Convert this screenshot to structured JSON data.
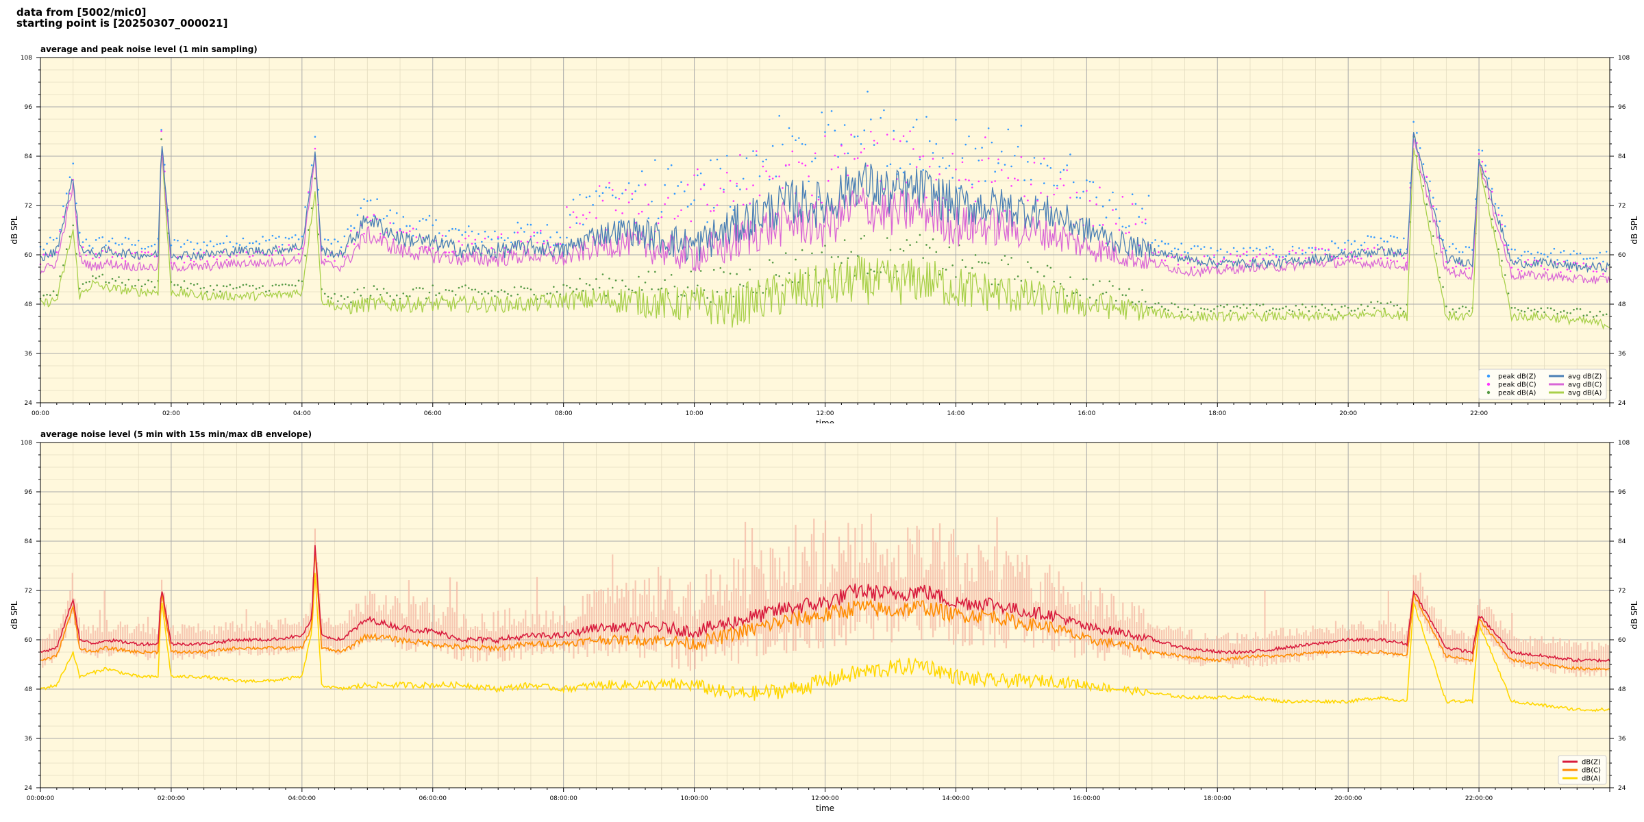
{
  "header": {
    "line1": "data from [5002/mic0]",
    "line2": "starting point is [20250307_000021]"
  },
  "colors": {
    "background": "#fff8dc",
    "grid_major": "#aaaaaa",
    "grid_minor": "#e4dcc0",
    "avg_z": "#4a7fb5",
    "avg_c": "#d966d6",
    "avg_a": "#a8d04a",
    "peak_z": "#3399ff",
    "peak_c": "#ff33ff",
    "peak_a": "#559944",
    "z5": "#d81a3c",
    "c5": "#ff8c00",
    "a5": "#ffd700",
    "envelope": "#f4b8a4"
  },
  "chart_data": [
    {
      "type": "line",
      "title": "average and peak noise level (1 min sampling)",
      "xlabel": "time",
      "ylabel": "dB SPL",
      "xlim": [
        0,
        24
      ],
      "ylim": [
        24,
        108
      ],
      "yticks": [
        "24",
        "36",
        "48",
        "60",
        "72",
        "84",
        "96",
        "108"
      ],
      "xticks": [
        "00:00",
        "02:00",
        "04:00",
        "06:00",
        "08:00",
        "10:00",
        "12:00",
        "14:00",
        "16:00",
        "18:00",
        "20:00",
        "22:00"
      ],
      "grid": true,
      "legend_position": "bottom-right",
      "legend": [
        "peak dB(Z)",
        "peak dB(C)",
        "peak dB(A)",
        "avg dB(Z)",
        "avg dB(C)",
        "avg dB(A)"
      ],
      "series": [
        {
          "name": "avg dB(Z)",
          "x": [
            0,
            0.25,
            0.5,
            0.6,
            0.8,
            1.0,
            1.5,
            1.8,
            1.85,
            2.0,
            2.5,
            3.0,
            3.5,
            4.0,
            4.2,
            4.3,
            4.6,
            5.0,
            5.5,
            6.0,
            6.5,
            7.0,
            7.5,
            8.0,
            8.5,
            9.0,
            9.5,
            10.0,
            10.5,
            11.0,
            11.5,
            12.0,
            12.5,
            13.0,
            13.5,
            14.0,
            14.5,
            15.0,
            15.5,
            16.0,
            16.5,
            17.0,
            17.5,
            18.0,
            18.5,
            19.0,
            19.5,
            20.0,
            20.5,
            20.9,
            21.0,
            21.5,
            21.9,
            22.0,
            22.5,
            23.0,
            23.5,
            24.0
          ],
          "values": [
            59,
            61,
            79,
            62,
            60,
            61,
            60,
            60,
            88,
            60,
            60,
            61,
            61,
            62,
            85,
            61,
            60,
            69,
            64,
            63,
            61,
            61,
            62,
            61,
            65,
            66,
            64,
            62,
            66,
            70,
            73,
            72,
            78,
            75,
            76,
            72,
            72,
            71,
            70,
            66,
            63,
            61,
            59,
            58,
            58,
            58,
            59,
            60,
            61,
            60,
            89,
            59,
            58,
            84,
            58,
            58,
            57,
            57
          ]
        },
        {
          "name": "avg dB(C)",
          "x": [
            0,
            0.25,
            0.5,
            0.6,
            0.8,
            1.0,
            1.5,
            1.8,
            1.85,
            2.0,
            2.5,
            3.0,
            3.5,
            4.0,
            4.2,
            4.3,
            4.6,
            5.0,
            5.5,
            6.0,
            6.5,
            7.0,
            7.5,
            8.0,
            8.5,
            9.0,
            9.5,
            10.0,
            10.5,
            11.0,
            11.5,
            12.0,
            12.5,
            13.0,
            13.5,
            14.0,
            14.5,
            15.0,
            15.5,
            16.0,
            16.5,
            17.0,
            17.5,
            18.0,
            18.5,
            19.0,
            19.5,
            20.0,
            20.5,
            20.9,
            21.0,
            21.5,
            21.9,
            22.0,
            22.5,
            23.0,
            23.5,
            24.0
          ],
          "values": [
            56,
            58,
            77,
            59,
            57,
            58,
            57,
            57,
            87,
            57,
            57,
            58,
            58,
            59,
            84,
            58,
            57,
            65,
            61,
            60,
            59,
            59,
            60,
            59,
            62,
            63,
            61,
            60,
            62,
            66,
            68,
            67,
            72,
            70,
            71,
            67,
            67,
            66,
            65,
            62,
            60,
            58,
            56,
            56,
            57,
            57,
            58,
            58,
            58,
            57,
            88,
            56,
            55,
            83,
            55,
            55,
            54,
            54
          ]
        },
        {
          "name": "avg dB(A)",
          "x": [
            0,
            0.25,
            0.5,
            0.6,
            0.8,
            1.0,
            1.5,
            1.8,
            1.85,
            2.0,
            2.5,
            3.0,
            3.5,
            4.0,
            4.2,
            4.3,
            4.6,
            5.0,
            5.5,
            6.0,
            6.5,
            7.0,
            7.5,
            8.0,
            8.5,
            9.0,
            9.5,
            10.0,
            10.5,
            11.0,
            11.5,
            12.0,
            12.5,
            13.0,
            13.5,
            14.0,
            14.5,
            15.0,
            15.5,
            16.0,
            16.5,
            17.0,
            17.5,
            18.0,
            18.5,
            19.0,
            19.5,
            20.0,
            20.5,
            20.9,
            21.0,
            21.5,
            21.9,
            22.0,
            22.5,
            23.0,
            23.5,
            24.0
          ],
          "values": [
            48,
            49,
            66,
            50,
            53,
            52,
            51,
            51,
            87,
            51,
            50,
            50,
            50,
            51,
            76,
            49,
            47,
            48,
            48,
            48,
            48,
            48,
            48,
            49,
            49,
            49,
            48,
            48,
            47,
            49,
            51,
            52,
            54,
            53,
            54,
            52,
            51,
            50,
            49,
            48,
            47,
            46,
            45,
            45,
            45,
            45,
            45,
            45,
            46,
            45,
            87,
            45,
            45,
            82,
            45,
            45,
            44,
            43
          ]
        }
      ]
    },
    {
      "type": "line",
      "title": "average noise level (5 min with 15s min/max dB envelope)",
      "xlabel": "time",
      "ylabel": "dB SPL",
      "xlim": [
        0,
        24
      ],
      "ylim": [
        24,
        108
      ],
      "yticks": [
        "24",
        "36",
        "48",
        "60",
        "72",
        "84",
        "96",
        "108"
      ],
      "xticks": [
        "00:00:00",
        "02:00:00",
        "04:00:00",
        "06:00:00",
        "08:00:00",
        "10:00:00",
        "12:00:00",
        "14:00:00",
        "16:00:00",
        "18:00:00",
        "20:00:00",
        "22:00:00"
      ],
      "grid": true,
      "legend_position": "bottom-right",
      "legend": [
        "dB(Z)",
        "dB(C)",
        "dB(A)"
      ],
      "series": [
        {
          "name": "dB(Z)",
          "x": [
            0,
            0.25,
            0.5,
            0.6,
            0.8,
            1.0,
            1.5,
            1.8,
            1.85,
            2.0,
            2.5,
            3.0,
            3.5,
            4.0,
            4.15,
            4.2,
            4.3,
            4.6,
            5.0,
            5.5,
            6.0,
            6.5,
            7.0,
            7.5,
            8.0,
            8.5,
            9.0,
            9.5,
            10.0,
            10.5,
            11.0,
            11.5,
            12.0,
            12.5,
            13.0,
            13.5,
            14.0,
            14.5,
            15.0,
            15.5,
            16.0,
            16.5,
            17.0,
            17.5,
            18.0,
            18.5,
            19.0,
            19.5,
            20.0,
            20.5,
            20.9,
            21.0,
            21.5,
            21.9,
            22.0,
            22.5,
            23.0,
            23.5,
            24.0
          ],
          "values": [
            57,
            58,
            70,
            60,
            59,
            60,
            59,
            59,
            73,
            59,
            59,
            60,
            60,
            61,
            65,
            83,
            61,
            60,
            65,
            63,
            62,
            60,
            60,
            61,
            61,
            63,
            63,
            63,
            62,
            64,
            66,
            68,
            69,
            72,
            71,
            72,
            69,
            69,
            67,
            66,
            63,
            62,
            60,
            58,
            57,
            57,
            58,
            59,
            60,
            60,
            59,
            72,
            58,
            57,
            66,
            57,
            56,
            55,
            55
          ]
        },
        {
          "name": "dB(C)",
          "x": [
            0,
            0.25,
            0.5,
            0.6,
            0.8,
            1.0,
            1.5,
            1.8,
            1.85,
            2.0,
            2.5,
            3.0,
            3.5,
            4.0,
            4.15,
            4.2,
            4.3,
            4.6,
            5.0,
            5.5,
            6.0,
            6.5,
            7.0,
            7.5,
            8.0,
            8.5,
            9.0,
            9.5,
            10.0,
            10.5,
            11.0,
            11.5,
            12.0,
            12.5,
            13.0,
            13.5,
            14.0,
            14.5,
            15.0,
            15.5,
            16.0,
            16.5,
            17.0,
            17.5,
            18.0,
            18.5,
            19.0,
            19.5,
            20.0,
            20.5,
            20.9,
            21.0,
            21.5,
            21.9,
            22.0,
            22.5,
            23.0,
            23.5,
            24.0
          ],
          "values": [
            55,
            56,
            68,
            58,
            57,
            58,
            57,
            57,
            72,
            57,
            57,
            58,
            58,
            58,
            63,
            82,
            58,
            57,
            61,
            60,
            59,
            58,
            58,
            59,
            59,
            60,
            60,
            60,
            59,
            61,
            63,
            65,
            66,
            68,
            67,
            68,
            66,
            66,
            64,
            63,
            60,
            59,
            57,
            56,
            55,
            56,
            56,
            57,
            57,
            57,
            56,
            71,
            56,
            55,
            65,
            55,
            54,
            53,
            53
          ]
        },
        {
          "name": "dB(A)",
          "x": [
            0,
            0.25,
            0.5,
            0.6,
            0.8,
            1.0,
            1.5,
            1.8,
            1.85,
            2.0,
            2.5,
            3.0,
            3.5,
            4.0,
            4.15,
            4.2,
            4.3,
            4.6,
            5.0,
            5.5,
            6.0,
            6.5,
            7.0,
            7.5,
            8.0,
            8.5,
            9.0,
            9.5,
            10.0,
            10.5,
            11.0,
            11.5,
            12.0,
            12.5,
            13.0,
            13.5,
            14.0,
            14.5,
            15.0,
            15.5,
            16.0,
            16.5,
            17.0,
            17.5,
            18.0,
            18.5,
            19.0,
            19.5,
            20.0,
            20.5,
            20.9,
            21.0,
            21.5,
            21.9,
            22.0,
            22.5,
            23.0,
            23.5,
            24.0
          ],
          "values": [
            48,
            49,
            57,
            51,
            52,
            53,
            51,
            51,
            70,
            51,
            51,
            50,
            50,
            51,
            62,
            76,
            49,
            48,
            49,
            49,
            49,
            49,
            48,
            49,
            48,
            49,
            49,
            49,
            49,
            47,
            47,
            48,
            50,
            52,
            53,
            54,
            51,
            50,
            50,
            50,
            49,
            48,
            47,
            46,
            46,
            46,
            45,
            45,
            45,
            46,
            45,
            69,
            45,
            45,
            64,
            45,
            44,
            43,
            43
          ]
        }
      ]
    }
  ]
}
